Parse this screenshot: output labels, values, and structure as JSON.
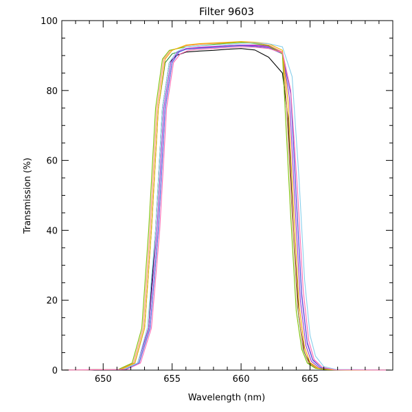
{
  "chart_data": {
    "type": "line",
    "title": "Filter 9603",
    "xlabel": "Wavelength (nm)",
    "ylabel": "Transmission (%)",
    "xlim": [
      647,
      671
    ],
    "ylim": [
      0,
      100
    ],
    "x_ticks": [
      650,
      655,
      660,
      665
    ],
    "y_ticks": [
      0,
      20,
      40,
      60,
      80,
      100
    ],
    "grid": false,
    "legend": "none",
    "series": [
      {
        "color": "#000000",
        "x": [
          647,
          651.5,
          652.5,
          653.3,
          653.8,
          654.3,
          654.8,
          655.3,
          656,
          657,
          658,
          659,
          660,
          661,
          662,
          663,
          663.4,
          663.8,
          664.2,
          664.6,
          665,
          665.6,
          666.5,
          671
        ],
        "y": [
          0,
          0.2,
          2,
          12,
          40,
          75,
          88,
          90,
          91,
          91.3,
          91.5,
          91.8,
          92,
          91.6,
          89.5,
          85,
          72,
          40,
          15,
          5,
          2,
          0.5,
          0.1,
          0
        ]
      },
      {
        "color": "#2e8b2e",
        "x": [
          647,
          651.3,
          652.3,
          653,
          653.5,
          654,
          654.5,
          655,
          656,
          657,
          658,
          659,
          660,
          661,
          662,
          663,
          663.3,
          663.7,
          664.1,
          664.5,
          664.9,
          665.5,
          666.5,
          671
        ],
        "y": [
          0,
          0.2,
          2,
          12,
          40,
          75,
          88,
          90.5,
          91.8,
          92.2,
          92.5,
          92.8,
          93,
          92.8,
          92.5,
          90.5,
          75,
          45,
          18,
          6,
          2,
          0.5,
          0.1,
          0
        ]
      },
      {
        "color": "#9932cc",
        "x": [
          647,
          651.5,
          652.5,
          653.3,
          653.9,
          654.4,
          654.9,
          655.4,
          656,
          657,
          658,
          659,
          660,
          661,
          662,
          663,
          663.5,
          663.9,
          664.3,
          664.7,
          665.1,
          665.7,
          666.6,
          671
        ],
        "y": [
          0,
          0.2,
          2,
          12,
          40,
          75,
          88,
          91,
          92,
          92.4,
          92.6,
          92.8,
          93,
          93,
          92.7,
          91,
          78,
          48,
          20,
          7,
          2.5,
          0.6,
          0.1,
          0
        ]
      },
      {
        "color": "#cc33cc",
        "x": [
          647,
          651.6,
          652.6,
          653.4,
          654,
          654.5,
          655,
          655.5,
          656,
          657,
          658,
          659,
          660,
          661,
          662,
          663,
          663.6,
          664,
          664.4,
          664.8,
          665.2,
          665.8,
          666.7,
          671
        ],
        "y": [
          0,
          0.2,
          2,
          12,
          40,
          75,
          88,
          91,
          92,
          92.3,
          92.5,
          92.7,
          92.9,
          92.8,
          92.5,
          91,
          80,
          50,
          22,
          8,
          3,
          0.7,
          0.1,
          0
        ]
      },
      {
        "color": "#4169e1",
        "x": [
          647,
          651.6,
          652.6,
          653.4,
          654,
          654.5,
          655,
          655.5,
          656,
          657,
          658,
          659,
          660,
          661,
          662,
          663,
          663.6,
          664,
          664.4,
          664.8,
          665.2,
          665.8,
          666.7,
          671
        ],
        "y": [
          0,
          0.2,
          2,
          12,
          40,
          75,
          88,
          91,
          91.8,
          92.1,
          92.3,
          92.6,
          92.8,
          92.6,
          92.2,
          90.5,
          79,
          49,
          21,
          7.5,
          2.8,
          0.7,
          0.1,
          0
        ]
      },
      {
        "color": "#ff8c69",
        "x": [
          647,
          651.2,
          652.2,
          652.9,
          653.4,
          653.9,
          654.4,
          654.9,
          656,
          657,
          658,
          659,
          660,
          661,
          662,
          663,
          663.3,
          663.7,
          664.1,
          664.5,
          664.9,
          665.5,
          666.4,
          671
        ],
        "y": [
          0,
          0.2,
          2,
          12,
          40,
          75,
          89,
          91.5,
          92.8,
          93.2,
          93.5,
          93.6,
          93.8,
          93.6,
          93,
          91,
          76,
          46,
          19,
          6.5,
          2.2,
          0.5,
          0.1,
          0
        ]
      },
      {
        "color": "#7cbf00",
        "x": [
          647,
          651.1,
          652.1,
          652.8,
          653.3,
          653.8,
          654.3,
          654.8,
          656,
          657,
          658,
          659,
          660,
          661,
          662,
          663,
          663.2,
          663.6,
          664,
          664.4,
          664.8,
          665.4,
          666.3,
          671
        ],
        "y": [
          0,
          0.2,
          2,
          12,
          40,
          75,
          89,
          91.5,
          92.5,
          92.8,
          93.2,
          93.5,
          93.8,
          93.4,
          92.8,
          90.5,
          74,
          44,
          17,
          6,
          2,
          0.5,
          0.1,
          0
        ]
      },
      {
        "color": "#f0b000",
        "x": [
          647,
          651.3,
          652.3,
          653,
          653.5,
          654,
          654.5,
          655,
          656,
          657,
          658,
          659,
          660,
          661,
          662,
          663,
          663.4,
          663.8,
          664.2,
          664.6,
          665,
          665.6,
          666.5,
          671
        ],
        "y": [
          0,
          0.2,
          2,
          12,
          40,
          75,
          89,
          91.5,
          93,
          93.4,
          93.6,
          93.8,
          94,
          93.8,
          93.4,
          91.5,
          77,
          47,
          19,
          6.5,
          2.2,
          0.5,
          0.1,
          0
        ]
      },
      {
        "color": "#87ceeb",
        "x": [
          647,
          651.5,
          652.5,
          653.2,
          653.8,
          654.3,
          654.8,
          655.3,
          656,
          657,
          658,
          659,
          660,
          661,
          662,
          663,
          663.7,
          664.2,
          664.6,
          665,
          665.4,
          666,
          666.9,
          671
        ],
        "y": [
          0,
          0.2,
          2,
          12,
          40,
          75,
          88,
          91,
          92.5,
          92.8,
          93,
          93.2,
          93.5,
          93.6,
          93.4,
          92.5,
          84,
          55,
          26,
          10,
          4,
          1,
          0.2,
          0
        ]
      },
      {
        "color": "#ff69b4",
        "x": [
          647,
          651.7,
          652.7,
          653.5,
          654.1,
          654.6,
          655.1,
          655.6,
          656.2,
          657,
          658,
          659,
          660,
          661,
          662,
          663,
          663.6,
          664.1,
          664.5,
          664.9,
          665.3,
          665.9,
          666.8,
          671
        ],
        "y": [
          0,
          0.2,
          2,
          12,
          40,
          75,
          88,
          90.5,
          91.5,
          91.8,
          92,
          92.3,
          92.5,
          92.4,
          92,
          90.8,
          80,
          51,
          23,
          8.5,
          3,
          0.8,
          0.1,
          0
        ]
      }
    ]
  }
}
